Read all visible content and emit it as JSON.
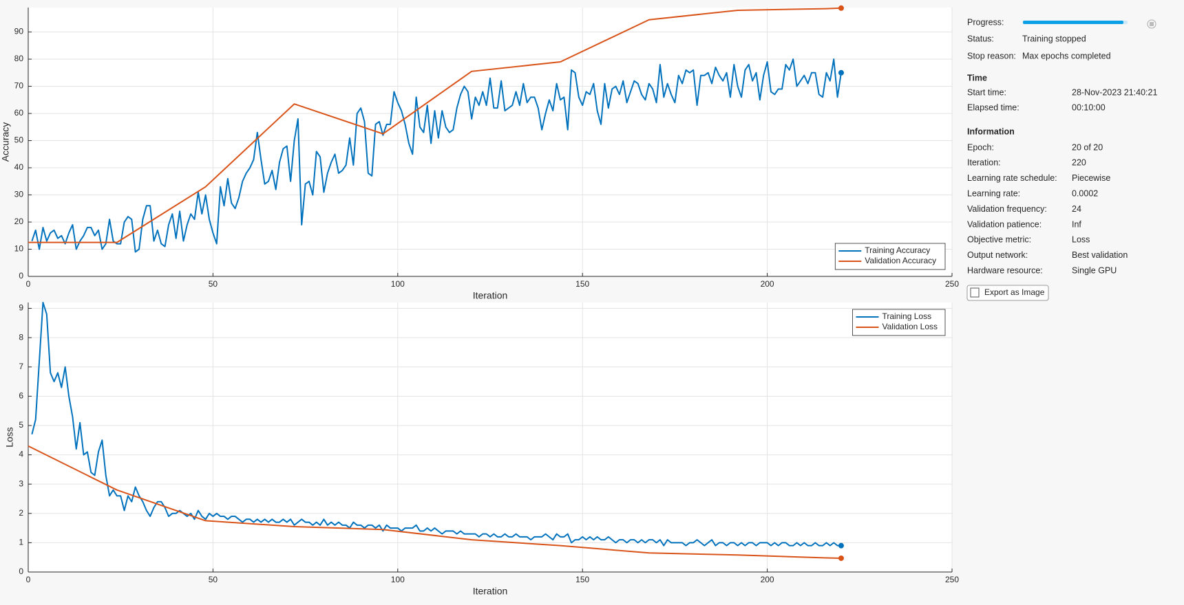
{
  "chart_data": [
    {
      "type": "line",
      "xlabel": "Iteration",
      "ylabel": "Accuracy",
      "xlim": [
        0,
        250
      ],
      "ylim": [
        0,
        99
      ],
      "xticks": [
        0,
        50,
        100,
        150,
        200,
        250
      ],
      "yticks": [
        0,
        10,
        20,
        30,
        40,
        50,
        60,
        70,
        80,
        90
      ],
      "grid": true,
      "legend": "lower right",
      "series": [
        {
          "name": "Training Accuracy",
          "color": "#0072bd",
          "x": [
            1,
            2,
            3,
            4,
            5,
            6,
            7,
            8,
            9,
            10,
            11,
            12,
            13,
            14,
            15,
            16,
            17,
            18,
            19,
            20,
            21,
            22,
            23,
            24,
            25,
            26,
            27,
            28,
            29,
            30,
            31,
            32,
            33,
            34,
            35,
            36,
            37,
            38,
            39,
            40,
            41,
            42,
            43,
            44,
            45,
            46,
            47,
            48,
            49,
            50,
            51,
            52,
            53,
            54,
            55,
            56,
            57,
            58,
            59,
            60,
            61,
            62,
            63,
            64,
            65,
            66,
            67,
            68,
            69,
            70,
            71,
            72,
            73,
            74,
            75,
            76,
            77,
            78,
            79,
            80,
            81,
            82,
            83,
            84,
            85,
            86,
            87,
            88,
            89,
            90,
            91,
            92,
            93,
            94,
            95,
            96,
            97,
            98,
            99,
            100,
            101,
            102,
            103,
            104,
            105,
            106,
            107,
            108,
            109,
            110,
            111,
            112,
            113,
            114,
            115,
            116,
            117,
            118,
            119,
            120,
            121,
            122,
            123,
            124,
            125,
            126,
            127,
            128,
            129,
            130,
            131,
            132,
            133,
            134,
            135,
            136,
            137,
            138,
            139,
            140,
            141,
            142,
            143,
            144,
            145,
            146,
            147,
            148,
            149,
            150,
            151,
            152,
            153,
            154,
            155,
            156,
            157,
            158,
            159,
            160,
            161,
            162,
            163,
            164,
            165,
            166,
            167,
            168,
            169,
            170,
            171,
            172,
            173,
            174,
            175,
            176,
            177,
            178,
            179,
            180,
            181,
            182,
            183,
            184,
            185,
            186,
            187,
            188,
            189,
            190,
            191,
            192,
            193,
            194,
            195,
            196,
            197,
            198,
            199,
            200,
            201,
            202,
            203,
            204,
            205,
            206,
            207,
            208,
            209,
            210,
            211,
            212,
            213,
            214,
            215,
            216,
            217,
            218,
            219,
            220
          ],
          "values": [
            13,
            17,
            10,
            18,
            13,
            16,
            17,
            14,
            15,
            12,
            16,
            19,
            10,
            13,
            15,
            18,
            18,
            15,
            17,
            10,
            12,
            21,
            13,
            12,
            12,
            20,
            22,
            21,
            9,
            10,
            21,
            26,
            26,
            13,
            17,
            12,
            11,
            19,
            23,
            14,
            24,
            13,
            19,
            23,
            21,
            31,
            23,
            30,
            21,
            16,
            12,
            33,
            26,
            36,
            27,
            25,
            29,
            35,
            38,
            40,
            43,
            53,
            43,
            34,
            35,
            39,
            32,
            42,
            47,
            48,
            35,
            50,
            58,
            19,
            34,
            35,
            30,
            46,
            44,
            31,
            38,
            42,
            45,
            38,
            39,
            41,
            51,
            41,
            60,
            62,
            57,
            38,
            37,
            56,
            57,
            52,
            56,
            56,
            68,
            64,
            61,
            56,
            49,
            45,
            66,
            55,
            53,
            63,
            49,
            61,
            51,
            61,
            55,
            53,
            54,
            62,
            67,
            70,
            68,
            58,
            66,
            63,
            68,
            63,
            73,
            62,
            62,
            72,
            61,
            62,
            63,
            68,
            63,
            71,
            64,
            66,
            66,
            62,
            54,
            60,
            65,
            61,
            71,
            65,
            66,
            54,
            76,
            75,
            66,
            63,
            68,
            67,
            71,
            61,
            56,
            71,
            62,
            69,
            70,
            67,
            72,
            64,
            68,
            72,
            71,
            67,
            65,
            71,
            69,
            64,
            78,
            66,
            71,
            67,
            64,
            74,
            71,
            76,
            75,
            76,
            63,
            74,
            74,
            75,
            71,
            77,
            74,
            72,
            75,
            66,
            78,
            70,
            66,
            76,
            78,
            72,
            75,
            65,
            74,
            79,
            68,
            67,
            69,
            69,
            78,
            76,
            80,
            70,
            72,
            74,
            71,
            75,
            75,
            67,
            66,
            75,
            72,
            80,
            66,
            75
          ]
        },
        {
          "name": "Validation Accuracy",
          "color": "#d95319",
          "x": [
            0,
            24,
            48,
            72,
            96,
            120,
            144,
            168,
            192,
            216,
            220
          ],
          "values": [
            12.5,
            12.5,
            33,
            63.5,
            52.5,
            75.5,
            79,
            94.5,
            98,
            98.6,
            98.8
          ]
        }
      ]
    },
    {
      "type": "line",
      "xlabel": "Iteration",
      "ylabel": "Loss",
      "xlim": [
        0,
        250
      ],
      "ylim": [
        0,
        9.2
      ],
      "xticks": [
        0,
        50,
        100,
        150,
        200,
        250
      ],
      "yticks": [
        0,
        1,
        2,
        3,
        4,
        5,
        6,
        7,
        8,
        9
      ],
      "grid": true,
      "legend": "upper right",
      "series": [
        {
          "name": "Training Loss",
          "color": "#0072bd",
          "x": [
            1,
            2,
            3,
            4,
            5,
            6,
            7,
            8,
            9,
            10,
            11,
            12,
            13,
            14,
            15,
            16,
            17,
            18,
            19,
            20,
            21,
            22,
            23,
            24,
            25,
            26,
            27,
            28,
            29,
            30,
            31,
            32,
            33,
            34,
            35,
            36,
            37,
            38,
            39,
            40,
            41,
            42,
            43,
            44,
            45,
            46,
            47,
            48,
            49,
            50,
            51,
            52,
            53,
            54,
            55,
            56,
            57,
            58,
            59,
            60,
            61,
            62,
            63,
            64,
            65,
            66,
            67,
            68,
            69,
            70,
            71,
            72,
            73,
            74,
            75,
            76,
            77,
            78,
            79,
            80,
            81,
            82,
            83,
            84,
            85,
            86,
            87,
            88,
            89,
            90,
            91,
            92,
            93,
            94,
            95,
            96,
            97,
            98,
            99,
            100,
            101,
            102,
            103,
            104,
            105,
            106,
            107,
            108,
            109,
            110,
            111,
            112,
            113,
            114,
            115,
            116,
            117,
            118,
            119,
            120,
            121,
            122,
            123,
            124,
            125,
            126,
            127,
            128,
            129,
            130,
            131,
            132,
            133,
            134,
            135,
            136,
            137,
            138,
            139,
            140,
            141,
            142,
            143,
            144,
            145,
            146,
            147,
            148,
            149,
            150,
            151,
            152,
            153,
            154,
            155,
            156,
            157,
            158,
            159,
            160,
            161,
            162,
            163,
            164,
            165,
            166,
            167,
            168,
            169,
            170,
            171,
            172,
            173,
            174,
            175,
            176,
            177,
            178,
            179,
            180,
            181,
            182,
            183,
            184,
            185,
            186,
            187,
            188,
            189,
            190,
            191,
            192,
            193,
            194,
            195,
            196,
            197,
            198,
            199,
            200,
            201,
            202,
            203,
            204,
            205,
            206,
            207,
            208,
            209,
            210,
            211,
            212,
            213,
            214,
            215,
            216,
            217,
            218,
            219,
            220
          ],
          "values": [
            4.7,
            5.2,
            7.2,
            9.2,
            8.8,
            6.8,
            6.5,
            6.8,
            6.3,
            7.0,
            6.0,
            5.3,
            4.2,
            5.1,
            4.0,
            4.1,
            3.4,
            3.3,
            4.1,
            4.5,
            3.3,
            2.6,
            2.8,
            2.6,
            2.6,
            2.1,
            2.6,
            2.4,
            2.9,
            2.6,
            2.4,
            2.1,
            1.9,
            2.2,
            2.4,
            2.4,
            2.2,
            1.9,
            2.0,
            2.0,
            2.1,
            2.0,
            1.9,
            2.0,
            1.8,
            2.1,
            1.9,
            1.8,
            2.0,
            1.9,
            2.0,
            1.9,
            1.9,
            1.8,
            1.9,
            1.9,
            1.8,
            1.7,
            1.8,
            1.8,
            1.7,
            1.8,
            1.7,
            1.8,
            1.7,
            1.8,
            1.7,
            1.7,
            1.8,
            1.7,
            1.8,
            1.6,
            1.7,
            1.8,
            1.7,
            1.7,
            1.6,
            1.7,
            1.6,
            1.8,
            1.6,
            1.7,
            1.6,
            1.7,
            1.6,
            1.6,
            1.5,
            1.7,
            1.6,
            1.6,
            1.5,
            1.6,
            1.6,
            1.5,
            1.6,
            1.4,
            1.6,
            1.5,
            1.5,
            1.5,
            1.4,
            1.5,
            1.5,
            1.5,
            1.6,
            1.4,
            1.4,
            1.5,
            1.4,
            1.5,
            1.4,
            1.3,
            1.4,
            1.4,
            1.4,
            1.3,
            1.4,
            1.3,
            1.3,
            1.3,
            1.3,
            1.2,
            1.3,
            1.3,
            1.2,
            1.3,
            1.2,
            1.2,
            1.3,
            1.2,
            1.2,
            1.3,
            1.2,
            1.2,
            1.2,
            1.1,
            1.2,
            1.2,
            1.2,
            1.3,
            1.2,
            1.1,
            1.3,
            1.2,
            1.2,
            1.3,
            1.0,
            1.1,
            1.1,
            1.2,
            1.1,
            1.2,
            1.1,
            1.2,
            1.1,
            1.1,
            1.2,
            1.1,
            1.0,
            1.1,
            1.1,
            1.0,
            1.1,
            1.1,
            1.0,
            1.1,
            1.0,
            1.1,
            1.1,
            1.0,
            1.1,
            0.9,
            1.1,
            1.0,
            1.0,
            1.0,
            1.0,
            0.9,
            1.0,
            1.0,
            1.1,
            1.0,
            0.9,
            1.0,
            1.1,
            0.9,
            1.0,
            1.0,
            0.9,
            1.0,
            1.0,
            0.9,
            1.0,
            0.9,
            1.0,
            1.0,
            0.9,
            1.0,
            1.0,
            1.0,
            0.9,
            1.0,
            0.9,
            1.0,
            1.0,
            0.9,
            0.9,
            1.0,
            0.9,
            1.0,
            0.9,
            0.9,
            1.0,
            0.9,
            0.9,
            1.0,
            0.9,
            1.0,
            0.9,
            0.9
          ]
        },
        {
          "name": "Validation Loss",
          "color": "#d95319",
          "x": [
            0,
            24,
            48,
            72,
            96,
            120,
            144,
            168,
            192,
            216,
            220
          ],
          "values": [
            4.3,
            2.8,
            1.75,
            1.55,
            1.45,
            1.1,
            0.9,
            0.65,
            0.58,
            0.48,
            0.47
          ]
        }
      ]
    }
  ],
  "panel": {
    "progress": "Progress:",
    "rows": [
      {
        "label": "Status:",
        "value": "Training stopped"
      },
      {
        "label": "Stop reason:",
        "value": "Max epochs completed"
      }
    ],
    "time": {
      "title": "Time",
      "rows": [
        {
          "label": "Start time:",
          "value": "28-Nov-2023 21:40:21"
        },
        {
          "label": "Elapsed time:",
          "value": "00:10:00"
        }
      ]
    },
    "information": {
      "title": "Information",
      "rows": [
        {
          "label": "Epoch:",
          "value": "20 of 20"
        },
        {
          "label": "Iteration:",
          "value": "220"
        },
        {
          "label": "Learning rate schedule:",
          "value": "Piecewise"
        },
        {
          "label": "Learning rate:",
          "value": "0.0002"
        },
        {
          "label": "Validation frequency:",
          "value": "24"
        },
        {
          "label": "Validation patience:",
          "value": "Inf"
        },
        {
          "label": "Objective metric:",
          "value": "Loss"
        },
        {
          "label": "Output network:",
          "value": "Best validation"
        },
        {
          "label": "Hardware resource:",
          "value": "Single GPU"
        }
      ]
    },
    "export_button": "Export as Image"
  }
}
